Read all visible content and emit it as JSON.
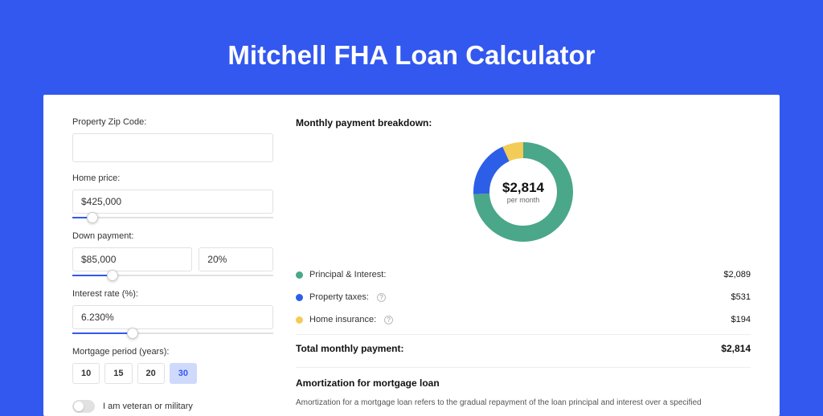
{
  "page": {
    "title": "Mitchell FHA Loan Calculator",
    "background_color": "#3358ef"
  },
  "form": {
    "zip": {
      "label": "Property Zip Code:",
      "value": ""
    },
    "home_price": {
      "label": "Home price:",
      "value": "$425,000",
      "slider_pct": 10
    },
    "down_payment": {
      "label": "Down payment:",
      "amount": "$85,000",
      "percent": "20%",
      "slider_pct": 20
    },
    "interest_rate": {
      "label": "Interest rate (%):",
      "value": "6.230%",
      "slider_pct": 30
    },
    "mortgage_period": {
      "label": "Mortgage period (years):",
      "options": [
        "10",
        "15",
        "20",
        "30"
      ],
      "selected": "30"
    },
    "veteran": {
      "label": "I am veteran or military",
      "checked": false
    }
  },
  "breakdown": {
    "title": "Monthly payment breakdown:",
    "donut": {
      "amount": "$2,814",
      "sub": "per month",
      "segments": [
        {
          "name": "principal_interest",
          "color": "#4aa789",
          "pct": 74.2
        },
        {
          "name": "property_taxes",
          "color": "#2d5ee8",
          "pct": 18.9
        },
        {
          "name": "home_insurance",
          "color": "#f2cc57",
          "pct": 6.9
        }
      ],
      "ring_width": 20,
      "background_color": "#ffffff"
    },
    "items": [
      {
        "label": "Principal & Interest:",
        "value": "$2,089",
        "color": "#4aa789",
        "help": false
      },
      {
        "label": "Property taxes:",
        "value": "$531",
        "color": "#2d5ee8",
        "help": true
      },
      {
        "label": "Home insurance:",
        "value": "$194",
        "color": "#f2cc57",
        "help": true
      }
    ],
    "total": {
      "label": "Total monthly payment:",
      "value": "$2,814"
    }
  },
  "amortization": {
    "title": "Amortization for mortgage loan",
    "text": "Amortization for a mortgage loan refers to the gradual repayment of the loan principal and interest over a specified"
  }
}
